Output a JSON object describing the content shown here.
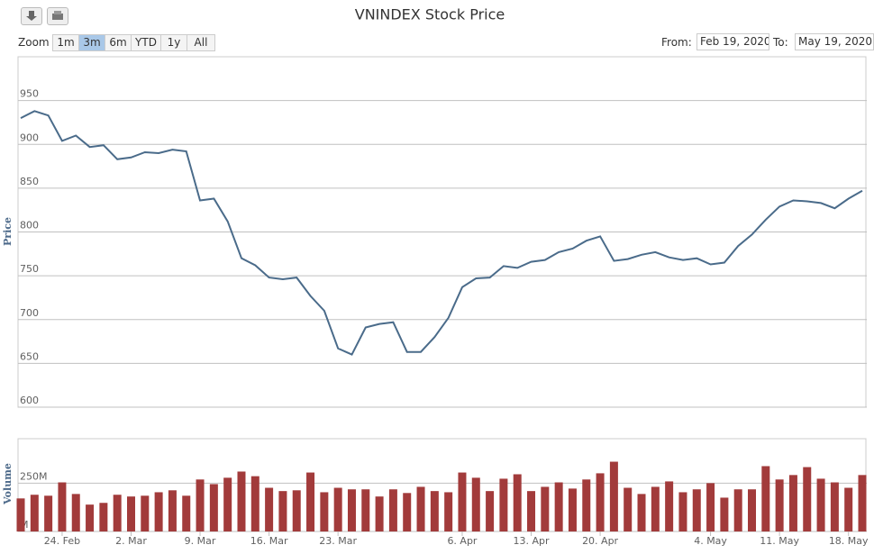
{
  "ui": {
    "zoom_label": "Zoom",
    "zoom_buttons": [
      "1m",
      "3m",
      "6m",
      "YTD",
      "1y",
      "All"
    ],
    "selected_zoom": "3m",
    "from_label": "From:",
    "from_date": "Feb 19, 2020",
    "to_label": "To:",
    "to_date": "May 19, 2020"
  },
  "chart_data": [
    {
      "type": "line",
      "title": "VNINDEX Stock Price",
      "y_label": "Price",
      "color": "#4a6b8a",
      "values": [
        930,
        938,
        933,
        904,
        910,
        897,
        899,
        883,
        885,
        891,
        890,
        894,
        892,
        836,
        838,
        812,
        770,
        762,
        748,
        746,
        748,
        727,
        710,
        667,
        660,
        691,
        695,
        697,
        663,
        663,
        680,
        702,
        737,
        747,
        748,
        761,
        759,
        766,
        768,
        777,
        781,
        790,
        795,
        767,
        769,
        774,
        777,
        771,
        768,
        770,
        763,
        765,
        784,
        797,
        814,
        829,
        836,
        835,
        833,
        827,
        838,
        847
      ],
      "ylim": [
        600,
        1000
      ],
      "yticks": [
        600,
        650,
        700,
        750,
        800,
        850,
        900,
        950
      ],
      "grid": true
    },
    {
      "type": "bar",
      "y_label": "Volume",
      "color": "#a23b3b",
      "categories": [
        null,
        null,
        null,
        "24. Feb",
        null,
        null,
        null,
        null,
        "2. Mar",
        null,
        null,
        null,
        null,
        "9. Mar",
        null,
        null,
        null,
        null,
        "16. Mar",
        null,
        null,
        null,
        null,
        "23. Mar",
        null,
        null,
        null,
        null,
        null,
        null,
        null,
        null,
        "6. Apr",
        null,
        null,
        null,
        null,
        "13. Apr",
        null,
        null,
        null,
        null,
        "20. Apr",
        null,
        null,
        null,
        null,
        null,
        null,
        null,
        "4. May",
        null,
        null,
        null,
        null,
        "11. May",
        null,
        null,
        null,
        null,
        "18. May",
        null
      ],
      "values": [
        171,
        190,
        185,
        254,
        194,
        139,
        148,
        190,
        181,
        185,
        203,
        213,
        185,
        269,
        245,
        278,
        310,
        286,
        226,
        209,
        213,
        305,
        203,
        226,
        218,
        218,
        181,
        218,
        199,
        231,
        209,
        203,
        305,
        278,
        209,
        273,
        296,
        209,
        231,
        254,
        222,
        269,
        301,
        361,
        226,
        194,
        231,
        259,
        203,
        218,
        250,
        175,
        218,
        218,
        338,
        269,
        292,
        333,
        273,
        254,
        226,
        292
      ],
      "ylim": [
        0,
        480
      ],
      "yticks": [
        {
          "value": 0,
          "label": "M"
        },
        {
          "value": 250,
          "label": "250M"
        }
      ],
      "grid": true
    }
  ]
}
